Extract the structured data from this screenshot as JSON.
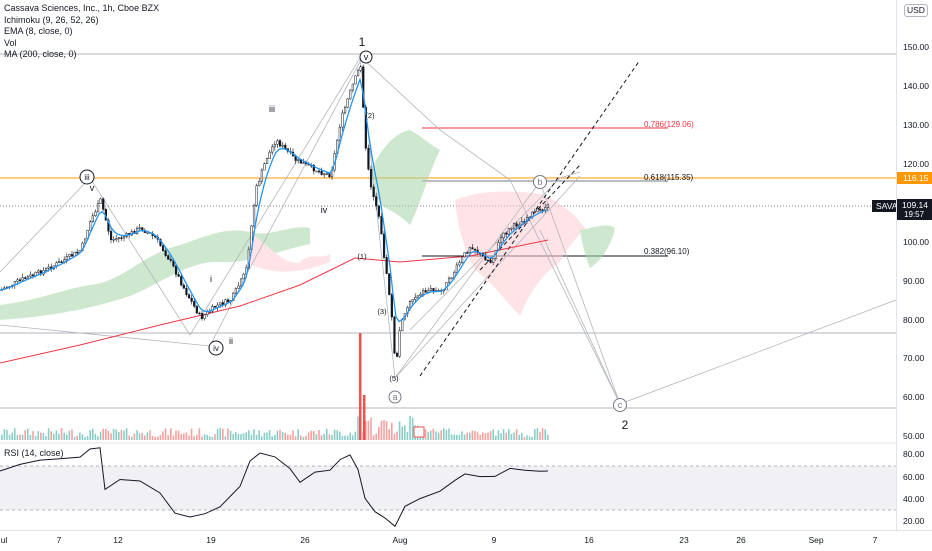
{
  "legend": {
    "symbol": "Cassava Sciences, Inc., 1h, Cboe BZX",
    "ichimoku": "Ichimoku (9, 26, 52, 26)",
    "ema": "EMA (8, close, 0)",
    "vol": "Vol",
    "ma": "MA (200, close, 0)"
  },
  "rsi_label": "RSI (14, close)",
  "currency": "USD",
  "price_axis": [
    "150.00",
    "140.00",
    "130.00",
    "120.00",
    "100.00",
    "90.00",
    "80.00",
    "70.00",
    "60.00",
    "50.00"
  ],
  "rsi_axis": [
    "80.00",
    "60.00",
    "40.00",
    "20.00"
  ],
  "time_axis": [
    "ul",
    "7",
    "9",
    "12",
    "19",
    "26",
    "Aug",
    "9",
    "16",
    "23",
    "26",
    "Sep",
    "7"
  ],
  "fib": {
    "f786": "0.786(129.06)",
    "f618": "0.618(115.35)",
    "f382": "0.382(96.10)"
  },
  "price_tags": {
    "orange": "116.15",
    "sava": "SAVA",
    "last": "109.14",
    "countdown": "19:57"
  },
  "waves": {
    "w1": "1",
    "w2": "2",
    "iii_circle": "iii",
    "v_small": "v",
    "v_circle": "v",
    "i": "i",
    "ii": "ii",
    "iii": "iii",
    "iv": "iv",
    "iv_circle": "iv",
    "p1": "(1)",
    "p2": "(2)",
    "p3": "(3)",
    "p5": "(5)",
    "a": "a",
    "b": "b",
    "c": "c"
  },
  "colors": {
    "ema": "#2196f3",
    "ma": "#f23645",
    "fib786": "#f23645",
    "orange": "#ff9800",
    "rsi": "#131722",
    "up": "#131722",
    "volume_up": "#26a69a",
    "volume_down": "#ef5350"
  }
}
